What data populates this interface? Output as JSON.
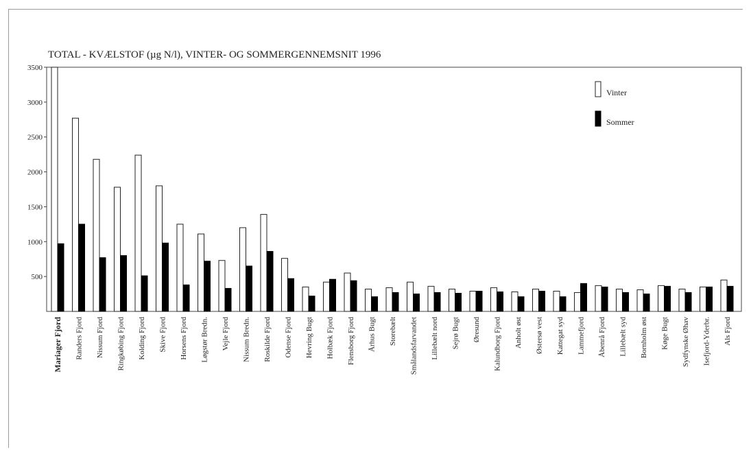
{
  "chart_data": {
    "type": "bar",
    "title": "TOTAL - KVÆLSTOF (µg N/l), VINTER- OG SOMMERGENNEMSNIT 1996",
    "ylim": [
      0,
      3500
    ],
    "yticks": [
      500,
      1000,
      1500,
      2000,
      2500,
      3000,
      3500
    ],
    "grid": false,
    "legend_position": "top-right",
    "categories": [
      "Mariager Fjord",
      "Randers Fjord",
      "Nissum Fjord",
      "Ringkøbing Fjord",
      "Kolding Fjord",
      "Skive Fjord",
      "Horsens Fjord",
      "Løgstør Bredn.",
      "Vejle Fjord",
      "Nissum Bredn.",
      "Roskilde Fjord",
      "Odense Fjord",
      "Hevring Bugt",
      "Holbæk Fjord",
      "Flensborg Fjord",
      "Århus Bugt",
      "Storebælt",
      "Smålandsfarvandet",
      "Lillebælt nord",
      "Sejrø Bugt",
      "Øresund",
      "Kalundborg Fjord",
      "Anholt øst",
      "Østersø vest",
      "Kattegat syd",
      "Lammefjord",
      "Åbenrå Fjord",
      "Lillebælt syd",
      "Bornholm øst",
      "Køge Bugt",
      "Sydfynske Øhav",
      "Isefjord-Yderbr.",
      "Als Fjord"
    ],
    "bold_categories": [
      "Mariager Fjord"
    ],
    "series": [
      {
        "name": "Vinter",
        "color": "#ffffff",
        "values": [
          3500,
          2770,
          2180,
          1780,
          2240,
          1800,
          1250,
          1110,
          730,
          1200,
          1390,
          760,
          350,
          420,
          550,
          320,
          340,
          420,
          360,
          320,
          290,
          340,
          280,
          320,
          290,
          270,
          370,
          320,
          310,
          370,
          320,
          350,
          450
        ]
      },
      {
        "name": "Sommer",
        "color": "#000000",
        "values": [
          970,
          1250,
          770,
          800,
          510,
          980,
          380,
          720,
          330,
          650,
          860,
          470,
          220,
          460,
          440,
          210,
          270,
          250,
          270,
          260,
          290,
          280,
          210,
          290,
          210,
          400,
          350,
          270,
          250,
          360,
          270,
          350,
          360
        ]
      }
    ]
  }
}
